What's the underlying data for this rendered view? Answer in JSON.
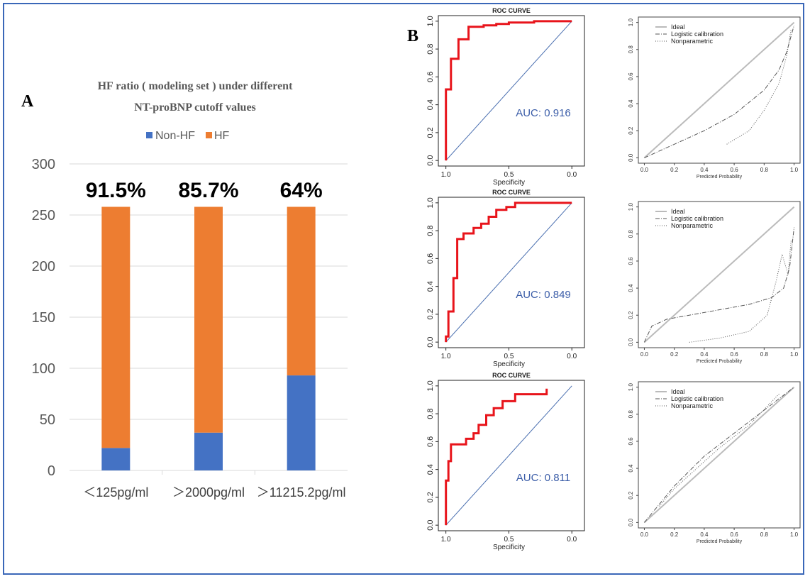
{
  "figure": {
    "panel_a_letter": "A",
    "panel_b_letter": "B"
  },
  "colors": {
    "non_hf": "#4472c4",
    "hf": "#ed7d31",
    "roc_curve": "#e8141b",
    "diagonal": "#4a6fb0",
    "frame": "#3a67b8"
  },
  "chart_data": [
    {
      "type": "bar",
      "stacked": true,
      "title": "HF ratio ( modeling set ) under different NT-proBNP cutoff values",
      "title_lines": [
        "HF ratio ( modeling set ) under different",
        "NT-proBNP cutoff values"
      ],
      "categories": [
        "＜125pg/ml",
        "＞2000pg/ml",
        "＞11215.2pg/ml"
      ],
      "series": [
        {
          "name": "Non-HF",
          "values": [
            22,
            37,
            93
          ]
        },
        {
          "name": "HF",
          "values": [
            236,
            221,
            165
          ]
        }
      ],
      "bar_top_labels": [
        "91.5%",
        "85.7%",
        "64%"
      ],
      "ylim": [
        0,
        300
      ],
      "yticks": [
        0,
        50,
        100,
        150,
        200,
        250,
        300
      ],
      "grid": true,
      "legend": "top"
    },
    {
      "type": "line",
      "title": "ROC CURVE",
      "xlabel": "Specificity",
      "xticks": [
        "1.0",
        "0.5",
        "0.0"
      ],
      "yticks": [
        "0.0",
        "0.2",
        "0.4",
        "0.6",
        "0.8",
        "1.0"
      ],
      "annotation": "AUC: 0.916",
      "series": [
        {
          "x": [
            1.0,
            1.0,
            0.96,
            0.96,
            0.9,
            0.9,
            0.82,
            0.82,
            0.7,
            0.7,
            0.6,
            0.6,
            0.5,
            0.5,
            0.3,
            0.3,
            0.0
          ],
          "y": [
            0.0,
            0.51,
            0.51,
            0.73,
            0.73,
            0.87,
            0.87,
            0.96,
            0.96,
            0.97,
            0.97,
            0.98,
            0.98,
            0.99,
            0.99,
            1.0,
            1.0
          ]
        }
      ]
    },
    {
      "type": "line",
      "title": "ROC CURVE",
      "xlabel": "Specificity",
      "xticks": [
        "1.0",
        "0.5",
        "0.0"
      ],
      "yticks": [
        "0.0",
        "0.2",
        "0.4",
        "0.6",
        "0.8",
        "1.0"
      ],
      "annotation": "AUC: 0.849",
      "series": [
        {
          "x": [
            1.0,
            1.0,
            0.98,
            0.98,
            0.94,
            0.94,
            0.91,
            0.91,
            0.86,
            0.86,
            0.78,
            0.78,
            0.72,
            0.72,
            0.66,
            0.66,
            0.6,
            0.6,
            0.52,
            0.52,
            0.45,
            0.45,
            0.0
          ],
          "y": [
            0.0,
            0.04,
            0.04,
            0.22,
            0.22,
            0.46,
            0.46,
            0.74,
            0.74,
            0.78,
            0.78,
            0.82,
            0.82,
            0.85,
            0.85,
            0.9,
            0.9,
            0.95,
            0.95,
            0.97,
            0.97,
            1.0,
            1.0
          ]
        }
      ]
    },
    {
      "type": "line",
      "title": "ROC CURVE",
      "xlabel": "Specificity",
      "xticks": [
        "1.0",
        "0.5",
        "0.0"
      ],
      "yticks": [
        "0.0",
        "0.2",
        "0.4",
        "0.6",
        "0.8",
        "1.0"
      ],
      "annotation": "AUC: 0.811",
      "series": [
        {
          "x": [
            1.0,
            1.0,
            0.98,
            0.98,
            0.96,
            0.96,
            0.84,
            0.84,
            0.78,
            0.78,
            0.74,
            0.74,
            0.68,
            0.68,
            0.62,
            0.62,
            0.55,
            0.55,
            0.45,
            0.45,
            0.2,
            0.2
          ],
          "y": [
            0.0,
            0.32,
            0.32,
            0.46,
            0.46,
            0.58,
            0.58,
            0.62,
            0.62,
            0.66,
            0.66,
            0.72,
            0.72,
            0.79,
            0.79,
            0.84,
            0.84,
            0.89,
            0.89,
            0.94,
            0.94,
            0.98
          ]
        }
      ]
    },
    {
      "type": "line",
      "xlabel": "Predicted Probability",
      "xticks": [
        "0.0",
        "0.2",
        "0.4",
        "0.6",
        "0.8",
        "1.0"
      ],
      "yticks": [
        "0.0",
        "0.2",
        "0.4",
        "0.6",
        "0.8",
        "1.0"
      ],
      "legend_items": [
        "Ideal",
        "Logistic calibration",
        "Nonparametric"
      ],
      "series": [
        {
          "x": [
            0.0,
            1.0
          ],
          "y": [
            0.0,
            1.0
          ]
        },
        {
          "x": [
            0.0,
            0.2,
            0.4,
            0.6,
            0.8,
            0.9,
            0.95,
            1.0
          ],
          "y": [
            0.0,
            0.1,
            0.2,
            0.32,
            0.5,
            0.65,
            0.78,
            0.98
          ]
        },
        {
          "x": [
            0.55,
            0.7,
            0.8,
            0.9,
            0.95,
            0.98
          ],
          "y": [
            0.1,
            0.2,
            0.35,
            0.55,
            0.75,
            0.95
          ]
        }
      ]
    },
    {
      "type": "line",
      "xlabel": "Predicted Probability",
      "xticks": [
        "0.0",
        "0.2",
        "0.4",
        "0.6",
        "0.8",
        "1.0"
      ],
      "yticks": [
        "0.0",
        "0.2",
        "0.4",
        "0.6",
        "0.8",
        "1.0"
      ],
      "legend_items": [
        "Ideal",
        "Logistic calibration",
        "Nonparametric"
      ],
      "series": [
        {
          "x": [
            0.0,
            1.0
          ],
          "y": [
            0.0,
            1.0
          ]
        },
        {
          "x": [
            0.0,
            0.05,
            0.15,
            0.3,
            0.5,
            0.7,
            0.85,
            0.93,
            0.97,
            1.0
          ],
          "y": [
            0.0,
            0.12,
            0.17,
            0.2,
            0.24,
            0.28,
            0.33,
            0.4,
            0.55,
            0.85
          ]
        },
        {
          "x": [
            0.3,
            0.5,
            0.7,
            0.82,
            0.88,
            0.92,
            0.96,
            0.98
          ],
          "y": [
            0.0,
            0.03,
            0.08,
            0.2,
            0.45,
            0.65,
            0.5,
            0.75
          ]
        }
      ]
    },
    {
      "type": "line",
      "xlabel": "Predicted Probability",
      "xticks": [
        "0.0",
        "0.2",
        "0.4",
        "0.6",
        "0.8",
        "1.0"
      ],
      "yticks": [
        "0.0",
        "0.2",
        "0.4",
        "0.6",
        "0.8",
        "1.0"
      ],
      "legend_items": [
        "Ideal",
        "Logistic calibration",
        "Nonparametric"
      ],
      "series": [
        {
          "x": [
            0.0,
            1.0
          ],
          "y": [
            0.0,
            1.0
          ]
        },
        {
          "x": [
            0.0,
            0.2,
            0.4,
            0.6,
            0.8,
            1.0
          ],
          "y": [
            0.0,
            0.27,
            0.49,
            0.66,
            0.83,
            1.0
          ]
        },
        {
          "x": [
            0.1,
            0.2,
            0.3,
            0.5,
            0.7,
            0.9
          ],
          "y": [
            0.12,
            0.25,
            0.35,
            0.55,
            0.72,
            0.95
          ]
        }
      ]
    }
  ]
}
